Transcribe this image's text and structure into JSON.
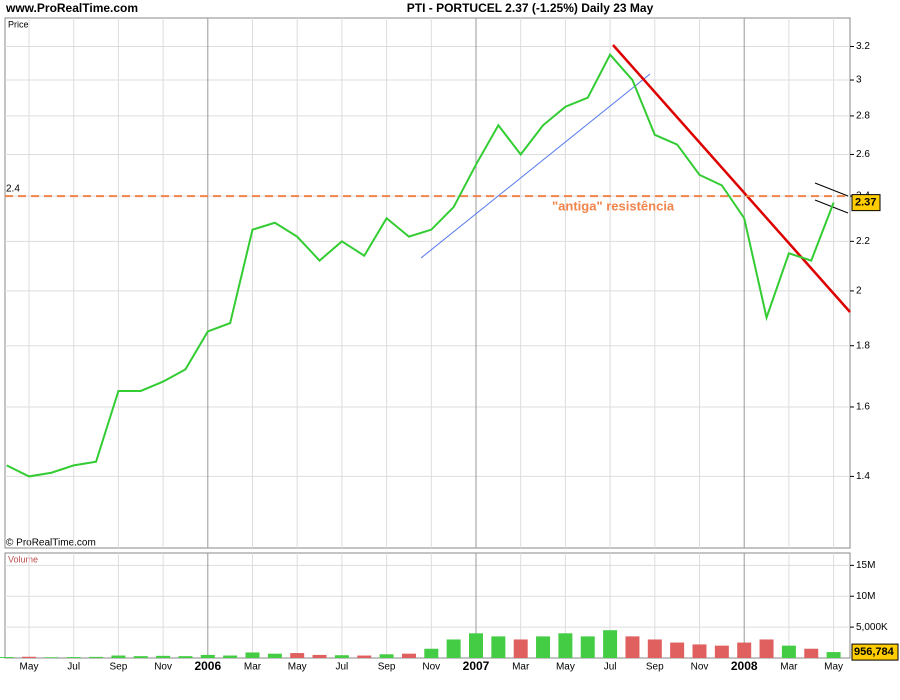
{
  "site": "www.ProRealTime.com",
  "copyright": "© ProRealTime.com",
  "chart_data": [
    {
      "type": "line",
      "title": "PTI - PORTUCEL    2.37 (-1.25%)    Daily  23 May",
      "label": "Price",
      "categories": [
        null,
        "May",
        null,
        "Jul",
        null,
        "Sep",
        null,
        "Nov",
        null,
        "2006",
        null,
        "Mar",
        null,
        "May",
        null,
        "Jul",
        null,
        "Sep",
        null,
        "Nov",
        null,
        "2007",
        null,
        "Mar",
        null,
        "May",
        null,
        "Jul",
        null,
        "Sep",
        null,
        "Nov",
        null,
        "2008",
        null,
        "Mar",
        null,
        "May"
      ],
      "values": [
        1.43,
        1.4,
        1.41,
        1.43,
        1.44,
        1.65,
        1.65,
        1.68,
        1.72,
        1.85,
        1.88,
        2.25,
        2.28,
        2.22,
        2.12,
        2.2,
        2.14,
        2.3,
        2.22,
        2.25,
        2.35,
        2.55,
        2.75,
        2.6,
        2.75,
        2.85,
        2.9,
        3.15,
        3.0,
        2.7,
        2.65,
        2.5,
        2.45,
        2.3,
        1.9,
        2.15,
        2.12,
        2.37
      ],
      "color": "#33cc33",
      "log": true,
      "ylim": [
        1.22,
        3.38
      ],
      "yticks": [
        1.4,
        1.6,
        1.8,
        2,
        2.2,
        2.4,
        2.6,
        2.8,
        3,
        3.2
      ],
      "grid": true,
      "reference_line": {
        "value": 2.4,
        "label": "2.4",
        "color": "#f0844a"
      },
      "annotation": "\"antiga\" resistência"
    },
    {
      "type": "bar",
      "label": "Volume",
      "values": [
        150000,
        200000,
        120000,
        150000,
        180000,
        400000,
        300000,
        350000,
        300000,
        500000,
        400000,
        900000,
        700000,
        800000,
        500000,
        450000,
        400000,
        600000,
        700000,
        1500000,
        3000000,
        4000000,
        3500000,
        3000000,
        3500000,
        4000000,
        3500000,
        4500000,
        3500000,
        3000000,
        2500000,
        2200000,
        2000000,
        2500000,
        3000000,
        2000000,
        1500000,
        956784
      ],
      "value_labels": [
        null,
        null,
        null,
        null,
        null,
        null,
        null,
        null,
        null,
        null,
        null,
        null,
        null,
        null,
        null,
        null,
        null,
        null,
        null,
        null,
        null,
        null,
        null,
        null,
        null,
        null,
        null,
        null,
        null,
        null,
        null,
        null,
        null,
        null,
        null,
        null,
        null,
        "956,784"
      ],
      "up_color": "#44cc44",
      "down_color": "#e06060",
      "ylim": [
        0,
        17000000
      ],
      "yticks": [
        {
          "value": 5000000,
          "label": "5,000K"
        },
        {
          "value": 10000000,
          "label": "10M"
        },
        {
          "value": 15000000,
          "label": "15M"
        }
      ],
      "grid": true
    }
  ]
}
